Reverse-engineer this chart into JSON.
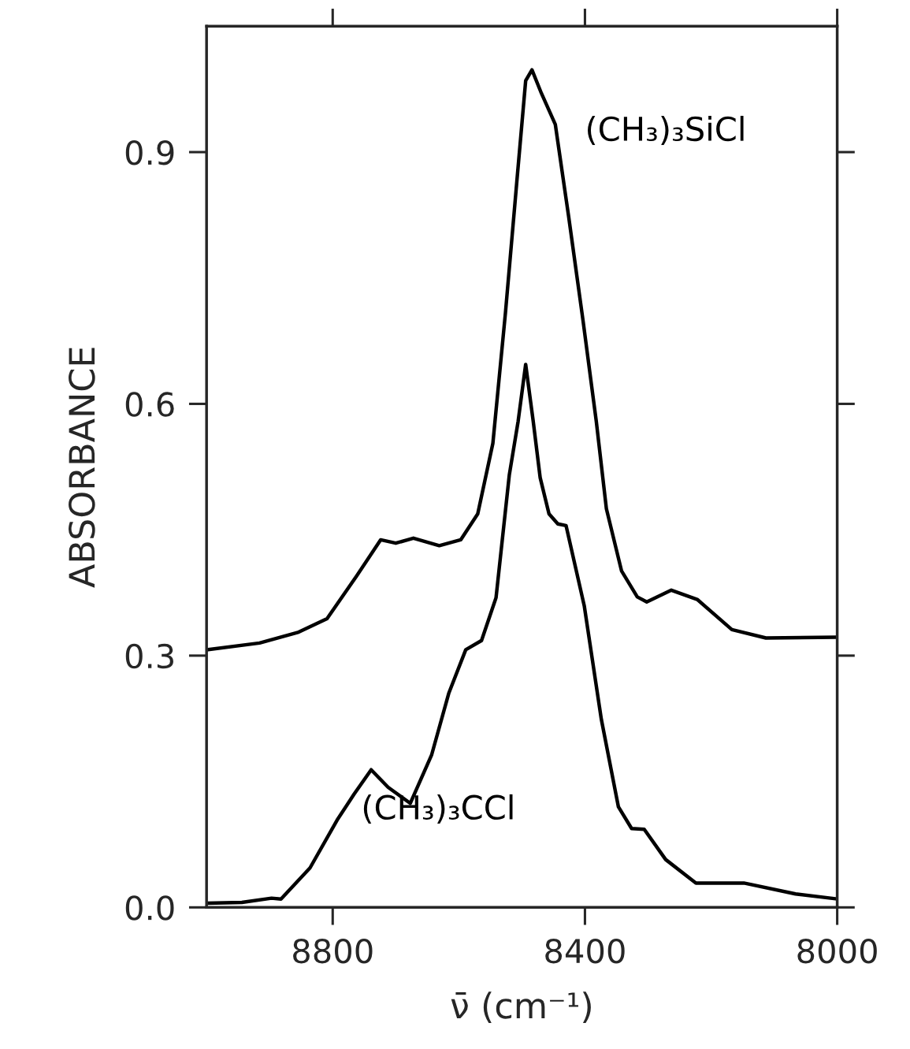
{
  "chart_data": {
    "type": "line",
    "xlabel": "ν̄ (cm⁻¹)",
    "ylabel": "ABSORBANCE",
    "xlim": [
      9000,
      8000
    ],
    "ylim": [
      0,
      1.05
    ],
    "xticks": [
      8800,
      8400,
      8000
    ],
    "yticks": [
      {
        "value": 0,
        "label": "0.0"
      },
      {
        "value": 0.3,
        "label": "0.3"
      },
      {
        "value": 0.6,
        "label": "0.6"
      },
      {
        "value": 0.9,
        "label": "0.9"
      }
    ],
    "grid": false,
    "legend": false,
    "marker": "none",
    "line_style": "solid",
    "series": [
      {
        "name": "(CH₃)₃SiCl",
        "color": "#000000",
        "x": [
          9000,
          8916,
          8854,
          8809,
          8762,
          8724,
          8700,
          8672,
          8631,
          8597,
          8570,
          8546,
          8526,
          8508,
          8494,
          8484,
          8469,
          8447,
          8426,
          8403,
          8382,
          8366,
          8342,
          8317,
          8302,
          8263,
          8222,
          8167,
          8113,
          8000
        ],
        "values": [
          0.307,
          0.315,
          0.328,
          0.344,
          0.395,
          0.438,
          0.434,
          0.44,
          0.431,
          0.438,
          0.469,
          0.553,
          0.709,
          0.865,
          0.985,
          0.998,
          0.97,
          0.933,
          0.824,
          0.699,
          0.579,
          0.475,
          0.401,
          0.37,
          0.364,
          0.378,
          0.367,
          0.331,
          0.321,
          0.322
        ]
      },
      {
        "name": "(CH₃)₃CCl",
        "color": "#000000",
        "x": [
          9000,
          8944,
          8897,
          8882,
          8836,
          8793,
          8766,
          8739,
          8712,
          8677,
          8643,
          8616,
          8589,
          8564,
          8541,
          8520,
          8506,
          8494,
          8482,
          8471,
          8457,
          8443,
          8430,
          8401,
          8374,
          8347,
          8326,
          8306,
          8272,
          8224,
          8148,
          8066,
          8000
        ],
        "values": [
          0.005,
          0.006,
          0.011,
          0.01,
          0.047,
          0.104,
          0.135,
          0.164,
          0.143,
          0.124,
          0.182,
          0.255,
          0.307,
          0.318,
          0.369,
          0.515,
          0.579,
          0.647,
          0.579,
          0.512,
          0.469,
          0.457,
          0.455,
          0.359,
          0.224,
          0.12,
          0.094,
          0.093,
          0.057,
          0.029,
          0.029,
          0.016,
          0.01
        ]
      }
    ]
  }
}
